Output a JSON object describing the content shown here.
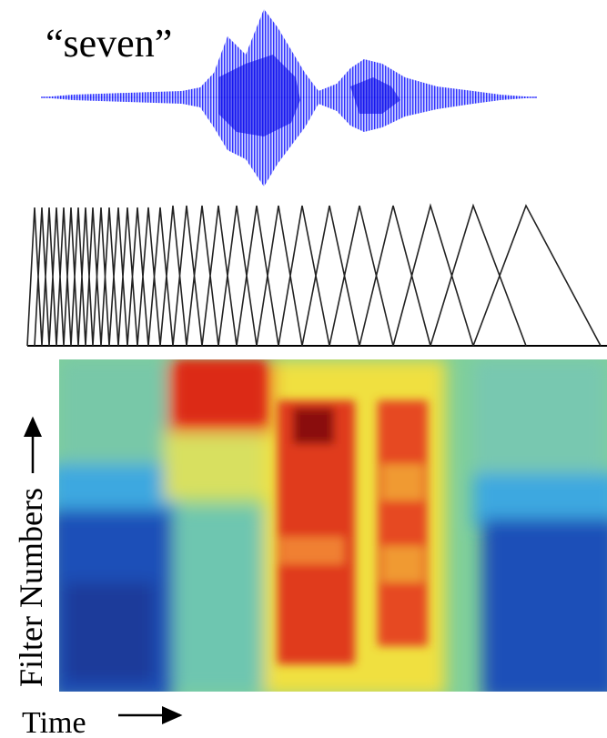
{
  "word_label": "“seven”",
  "y_axis_label": "Filter Numbers",
  "x_axis_label": "Time"
}
